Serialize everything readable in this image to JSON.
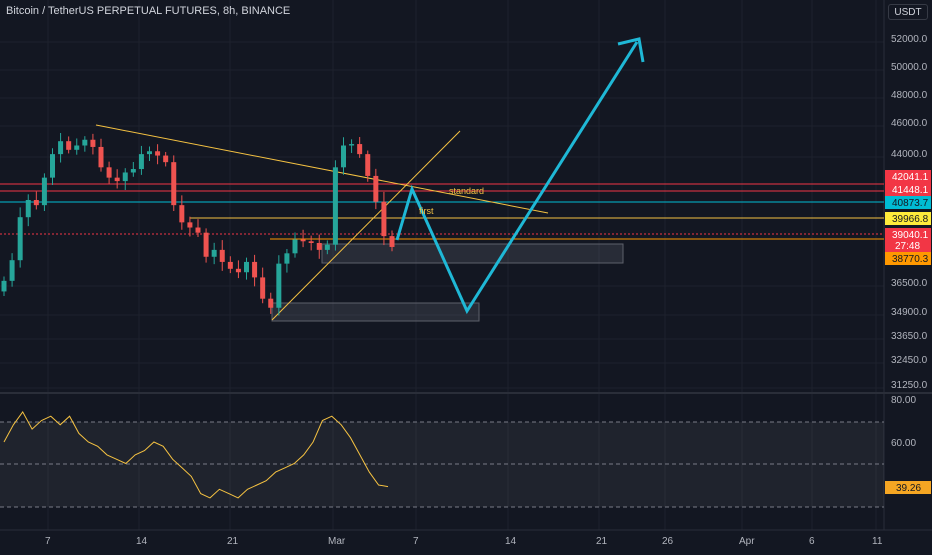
{
  "header": {
    "title": "Bitcoin / TetherUS PERPETUAL FUTURES, 8h, BINANCE",
    "currency": "USDT"
  },
  "price_axis": {
    "ticks": [
      "52000.0",
      "50000.0",
      "48000.0",
      "46000.0",
      "44000.0",
      "36500.0",
      "34900.0",
      "33650.0",
      "32450.0",
      "31250.0"
    ],
    "badges": [
      {
        "label": "42041.1",
        "color": "#f23645",
        "text": "light"
      },
      {
        "label": "41448.1",
        "color": "#f23645",
        "text": "light"
      },
      {
        "label": "40873.7",
        "color": "#00bcd4",
        "text": "dark"
      },
      {
        "label": "39966.8",
        "color": "#ffeb3b",
        "text": "dark"
      },
      {
        "label": "39040.1",
        "color": "#f23645",
        "text": "light"
      },
      {
        "label": "27:48",
        "color": "#f23645",
        "text": "light"
      },
      {
        "label": "38770.3",
        "color": "#ff9800",
        "text": "dark"
      }
    ]
  },
  "rsi_axis": {
    "ticks": [
      "80.00",
      "60.00"
    ],
    "value_badge": "39.26"
  },
  "date_axis": {
    "ticks": [
      "7",
      "14",
      "21",
      "Mar",
      "7",
      "14",
      "21",
      "26",
      "Apr",
      "6",
      "11"
    ]
  },
  "annotations": {
    "standard": "standard",
    "first": "first"
  },
  "colors": {
    "background": "#131722",
    "up": "#26a69a",
    "down": "#ef5350",
    "projection": "#1fb8d6",
    "trend": "#f5c242",
    "rsi": "#f5c242"
  },
  "chart_data": {
    "type": "candlestick",
    "symbol": "Bitcoin / TetherUS PERPETUAL FUTURES",
    "timeframe": "8h",
    "horizontal_levels": [
      42041.1,
      41448.1,
      40873.7,
      39966.8,
      39040.1,
      38770.3
    ],
    "close_series_approx": [
      36800,
      38000,
      40500,
      41500,
      41200,
      42800,
      44200,
      45100,
      44500,
      44800,
      45200,
      44700,
      43400,
      42800,
      42600,
      43100,
      43300,
      44200,
      44400,
      44100,
      43700,
      41200,
      40200,
      39900,
      39600,
      38200,
      38600,
      37900,
      37500,
      37300,
      37900,
      37000,
      35800,
      35300,
      37800,
      38400,
      39200,
      39100,
      39000,
      38600,
      38900,
      43400,
      44800,
      44900,
      44200,
      42900,
      41400,
      39400,
      38770
    ],
    "projection_path": [
      38770,
      41600,
      34900,
      53000
    ],
    "rsi_approx": [
      60,
      68,
      74,
      66,
      70,
      72,
      68,
      72,
      64,
      60,
      58,
      54,
      52,
      50,
      54,
      56,
      60,
      58,
      52,
      48,
      44,
      36,
      34,
      38,
      36,
      34,
      38,
      40,
      42,
      46,
      48,
      50,
      54,
      60,
      70,
      72,
      68,
      62,
      54,
      46,
      40,
      39.26
    ]
  }
}
